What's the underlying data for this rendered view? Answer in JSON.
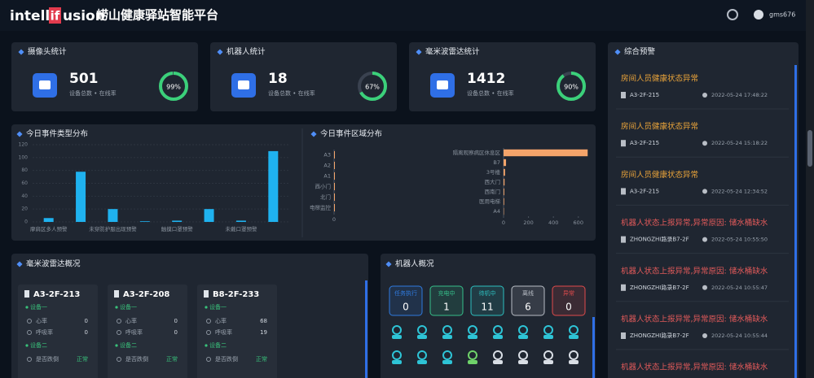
{
  "header": {
    "logo": [
      "intell",
      "if",
      "usion"
    ],
    "title": "崂山健康驿站智能平台",
    "user": "gms676"
  },
  "stats": [
    {
      "title": "摄像头统计",
      "total": 501,
      "caption": "设备总数 • 在线率",
      "rate": 99,
      "rate_label": "99%"
    },
    {
      "title": "机器人统计",
      "total": 18,
      "caption": "设备总数 • 在线率",
      "rate": 67,
      "rate_label": "67%"
    },
    {
      "title": "毫米波雷达统计",
      "total": 1412,
      "caption": "设备总数 • 在线率",
      "rate": 90,
      "rate_label": "90%"
    }
  ],
  "chart_data": [
    {
      "type": "bar",
      "title": "今日事件类型分布",
      "categories": [
        "摩肩区多人预警",
        null,
        "未穿防护服出现预警",
        null,
        "触摸口罩预警",
        null,
        "未戴口罩预警",
        null
      ],
      "values": [
        6,
        78,
        20,
        1,
        2,
        20,
        2,
        110
      ],
      "color": "#1fb2ef",
      "ylim": [
        0,
        120
      ],
      "yticks": [
        0,
        20,
        40,
        60,
        80,
        100,
        120
      ],
      "grid": true
    },
    {
      "type": "hbar",
      "title": "今日事件区域分布",
      "categories": [
        "A3",
        "A2",
        "A1",
        "西小门",
        "北门",
        "电梯监控"
      ],
      "values": [
        1,
        1,
        1,
        1,
        1,
        1
      ],
      "color": "#f4a46a",
      "xlim": [
        0,
        50
      ],
      "xticks": [
        0
      ]
    },
    {
      "type": "hbar",
      "categories": [
        "隔离观察病区休息区",
        "B7",
        "3号楼",
        "西大门",
        "西南门",
        "医用电梯",
        "A4"
      ],
      "values": [
        675,
        20,
        12,
        8,
        6,
        5,
        3
      ],
      "color": "#f4a46a",
      "xlim": [
        0,
        680
      ],
      "xticks": [
        0,
        200,
        400,
        600
      ]
    }
  ],
  "radar": {
    "title": "毫米波雷达概况",
    "cards": [
      {
        "name": "A3-2F-213",
        "devices": [
          {
            "name": "设备一",
            "rows": [
              {
                "label": "心率",
                "value": 0
              },
              {
                "label": "呼吸率",
                "value": 0
              }
            ]
          },
          {
            "name": "设备二",
            "rows": [
              {
                "label": "是否跌倒",
                "value": "正常"
              }
            ]
          }
        ]
      },
      {
        "name": "A3-2F-208",
        "devices": [
          {
            "name": "设备一",
            "rows": [
              {
                "label": "心率",
                "value": 0
              },
              {
                "label": "呼吸率",
                "value": 0
              }
            ]
          },
          {
            "name": "设备二",
            "rows": [
              {
                "label": "是否跌倒",
                "value": "正常"
              }
            ]
          }
        ]
      },
      {
        "name": "B8-2F-233",
        "devices": [
          {
            "name": "设备一",
            "rows": [
              {
                "label": "心率",
                "value": 68
              },
              {
                "label": "呼吸率",
                "value": 19
              }
            ]
          },
          {
            "name": "设备二",
            "rows": [
              {
                "label": "是否跌倒",
                "value": "正常"
              }
            ]
          }
        ]
      }
    ]
  },
  "robots": {
    "title": "机器人概况",
    "statuses": [
      {
        "label": "任务执行",
        "count": 0,
        "color": "#2f7be0"
      },
      {
        "label": "充电中",
        "count": 1,
        "color": "#36c08a"
      },
      {
        "label": "待机中",
        "count": 11,
        "color": "#2dbfbf"
      },
      {
        "label": "离线",
        "count": 6,
        "color": "#b9bec6"
      },
      {
        "label": "异常",
        "count": 0,
        "color": "#e04b4b"
      }
    ]
  },
  "alerts": {
    "title": "综合预警",
    "items": [
      {
        "title": "房间人员健康状态异常",
        "location": "A3-2F-215",
        "time": "2022-05-24 17:48:22",
        "color": "#e8a33a"
      },
      {
        "title": "房间人员健康状态异常",
        "location": "A3-2F-215",
        "time": "2022-05-24 15:18:22",
        "color": "#e8a33a"
      },
      {
        "title": "房间人员健康状态异常",
        "location": "A3-2F-215",
        "time": "2022-05-24 12:34:52",
        "color": "#e8a33a"
      },
      {
        "title": "机器人状态上报异常,异常原因: 储水桶缺水",
        "location": "ZHONGZHI路录B7-2F",
        "time": "2022-05-24 10:55:50",
        "color": "#e25a5a"
      },
      {
        "title": "机器人状态上报异常,异常原因: 储水桶缺水",
        "location": "ZHONGZHI路录B7-2F",
        "time": "2022-05-24 10:55:47",
        "color": "#e25a5a"
      },
      {
        "title": "机器人状态上报异常,异常原因: 储水桶缺水",
        "location": "ZHONGZHI路录B7-2F",
        "time": "2022-05-24 10:55:44",
        "color": "#e25a5a"
      },
      {
        "title": "机器人状态上报异常,异常原因: 储水桶缺水",
        "color": "#e25a5a"
      }
    ]
  }
}
